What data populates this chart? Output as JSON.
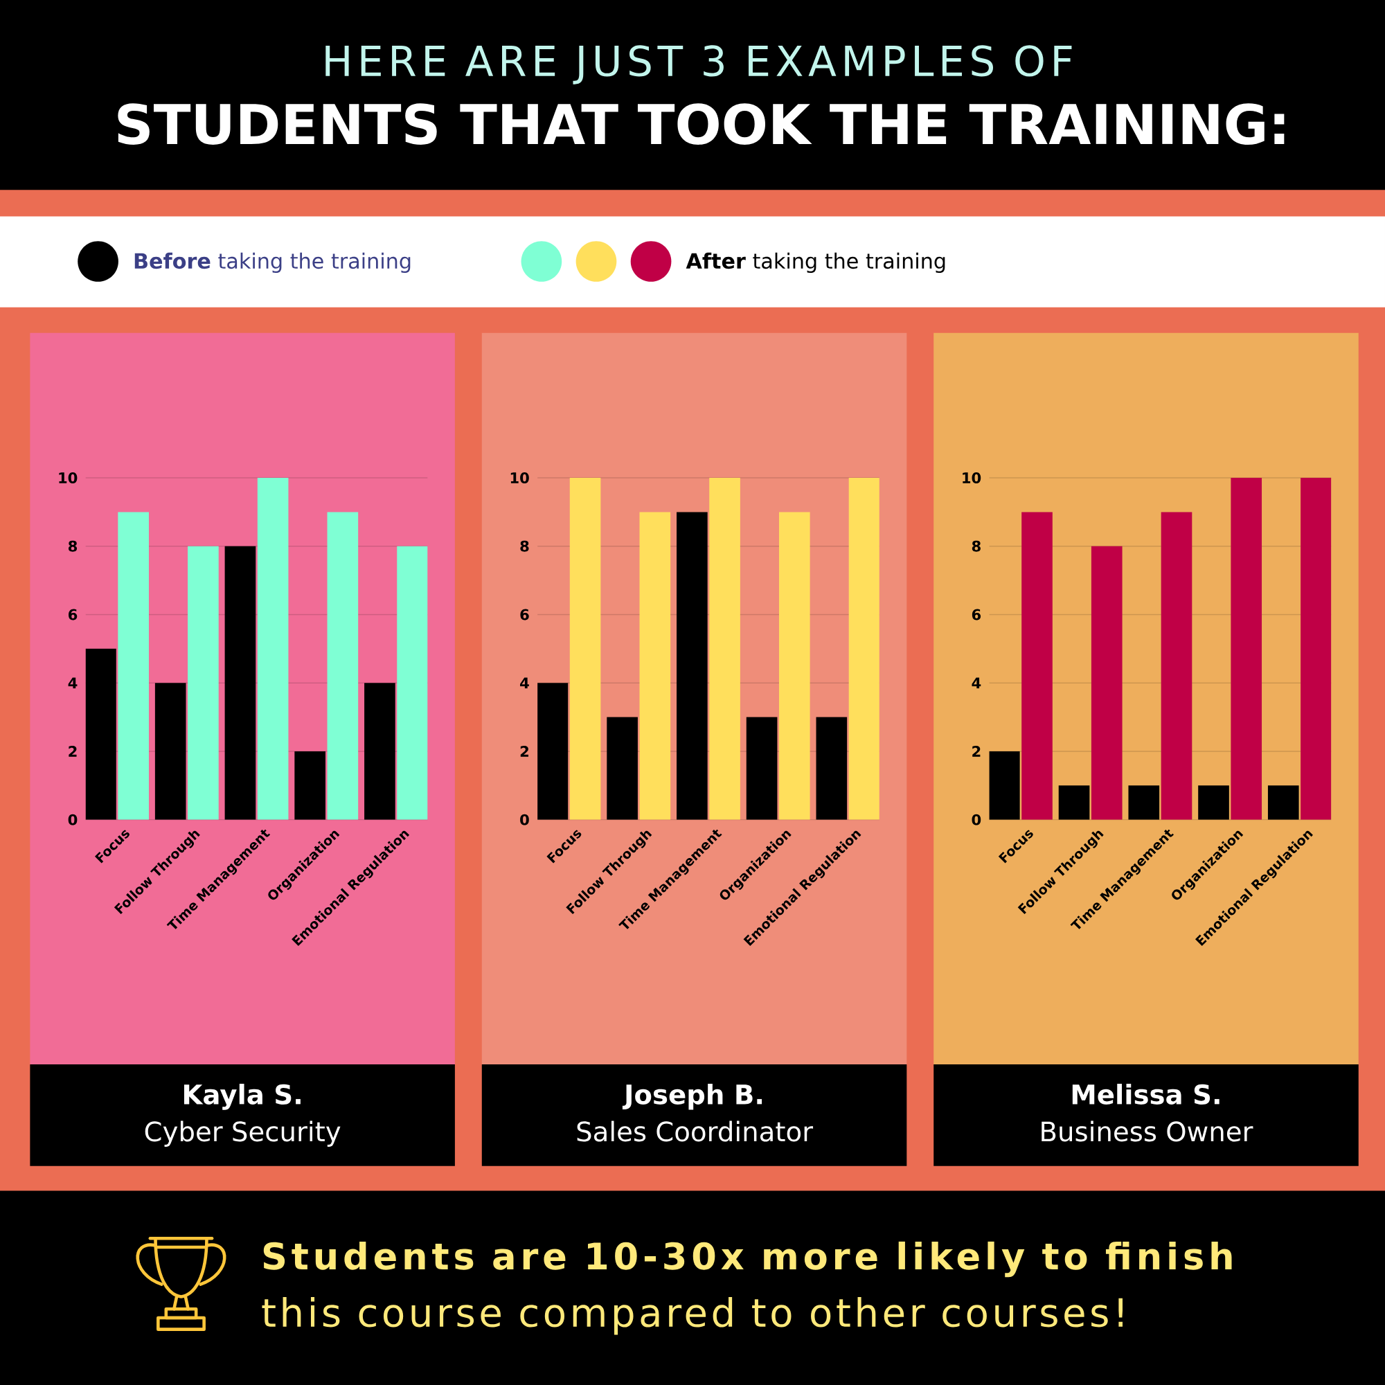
{
  "chart_data": [
    {
      "type": "bar",
      "title": "Kayla S.",
      "subtitle": "Cyber Security",
      "annotations": [
        "HERE ARE JUST 3 EXAMPLES OF",
        "STUDENTS THAT TOOK THE TRAINING:",
        "Students are 10-30x more likely to finish",
        "this course compared to other courses!"
      ],
      "categories": [
        "Focus",
        "Follow Through",
        "Time Management",
        "Organization",
        "Emotional Regulation"
      ],
      "series": [
        {
          "color": "#000000",
          "values": [
            5,
            4,
            8,
            2,
            4
          ]
        },
        {
          "color": "#7fffd4",
          "values": [
            9,
            8,
            10,
            9,
            8
          ]
        }
      ],
      "ylim": [
        0,
        10
      ],
      "yticks": [
        0,
        2,
        4,
        6,
        8,
        10
      ],
      "grid": "y"
    },
    {
      "type": "bar",
      "title": "Joseph B.",
      "subtitle": "Sales Coordinator",
      "categories": [
        "Focus",
        "Follow Through",
        "Time Management",
        "Organization",
        "Emotional Regulation"
      ],
      "series": [
        {
          "color": "#000000",
          "values": [
            4,
            3,
            9,
            3,
            3
          ]
        },
        {
          "color": "#ffdf5c",
          "values": [
            10,
            9,
            10,
            9,
            10
          ]
        }
      ],
      "ylim": [
        0,
        10
      ],
      "yticks": [
        0,
        2,
        4,
        6,
        8,
        10
      ],
      "grid": "y"
    },
    {
      "type": "bar",
      "title": "Melissa S.",
      "subtitle": "Business Owner",
      "legend": "top",
      "categories": [
        "Focus",
        "Follow Through",
        "Time Management",
        "Organization",
        "Emotional Regulation"
      ],
      "series": [
        {
          "name": "**Before** taking the training",
          "color": "#000000",
          "values": [
            2,
            1,
            1,
            1,
            1
          ]
        },
        {
          "name": "**After** taking the training",
          "color": "#c00046",
          "values": [
            9,
            8,
            9,
            10,
            10
          ]
        }
      ],
      "ylim": [
        0,
        10
      ],
      "yticks": [
        0,
        2,
        4,
        6,
        8,
        10
      ],
      "grid": "y"
    }
  ]
}
